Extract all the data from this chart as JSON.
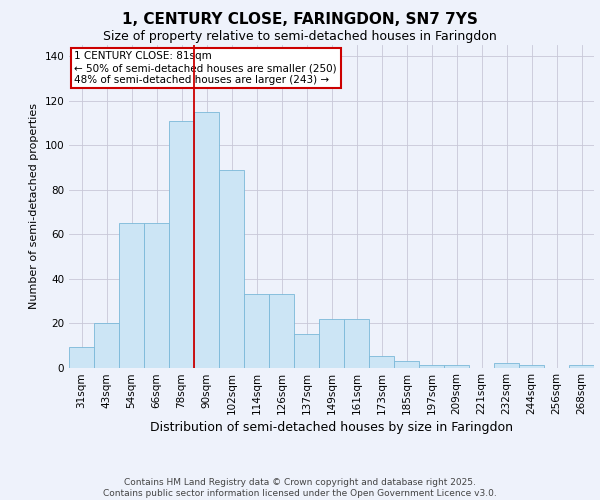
{
  "title": "1, CENTURY CLOSE, FARINGDON, SN7 7YS",
  "subtitle": "Size of property relative to semi-detached houses in Faringdon",
  "xlabel": "Distribution of semi-detached houses by size in Faringdon",
  "ylabel": "Number of semi-detached properties",
  "categories": [
    "31sqm",
    "43sqm",
    "54sqm",
    "66sqm",
    "78sqm",
    "90sqm",
    "102sqm",
    "114sqm",
    "126sqm",
    "137sqm",
    "149sqm",
    "161sqm",
    "173sqm",
    "185sqm",
    "197sqm",
    "209sqm",
    "221sqm",
    "232sqm",
    "244sqm",
    "256sqm",
    "268sqm"
  ],
  "values": [
    9,
    20,
    65,
    65,
    111,
    115,
    89,
    33,
    33,
    15,
    22,
    22,
    5,
    3,
    1,
    1,
    0,
    2,
    1,
    0,
    1
  ],
  "bar_color": "#cce5f5",
  "bar_edge_color": "#7ab8d9",
  "annotation_text": "1 CENTURY CLOSE: 81sqm\n← 50% of semi-detached houses are smaller (250)\n48% of semi-detached houses are larger (243) →",
  "annotation_box_color": "#ffffff",
  "annotation_box_edge_color": "#cc0000",
  "vline_color": "#cc0000",
  "background_color": "#eef2fb",
  "plot_background_color": "#eef2fb",
  "footer_text": "Contains HM Land Registry data © Crown copyright and database right 2025.\nContains public sector information licensed under the Open Government Licence v3.0.",
  "ylim": [
    0,
    145
  ],
  "yticks": [
    0,
    20,
    40,
    60,
    80,
    100,
    120,
    140
  ],
  "title_fontsize": 11,
  "subtitle_fontsize": 9,
  "xlabel_fontsize": 9,
  "ylabel_fontsize": 8,
  "tick_fontsize": 7.5,
  "footer_fontsize": 6.5,
  "vline_x_index": 4.5
}
